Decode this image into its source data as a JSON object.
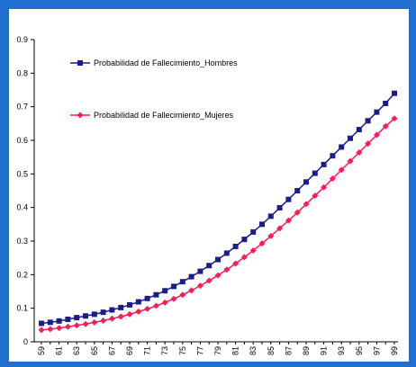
{
  "chart_data": {
    "type": "line",
    "title": "",
    "xlabel": "",
    "ylabel": "",
    "ylim": [
      0,
      0.9
    ],
    "yticks": [
      "0",
      "0.1",
      "0.2",
      "0.3",
      "0.4",
      "0.5",
      "0.6",
      "0.7",
      "0.8",
      "0.9"
    ],
    "x": [
      59,
      60,
      61,
      62,
      63,
      64,
      65,
      66,
      67,
      68,
      69,
      70,
      71,
      72,
      73,
      74,
      75,
      76,
      77,
      78,
      79,
      80,
      81,
      82,
      83,
      84,
      85,
      86,
      87,
      88,
      89,
      90,
      91,
      92,
      93,
      94,
      95,
      96,
      97,
      98,
      99
    ],
    "xtick_labels": [
      "59",
      "61",
      "63",
      "65",
      "67",
      "69",
      "71",
      "73",
      "75",
      "77",
      "79",
      "81",
      "83",
      "85",
      "87",
      "89",
      "91",
      "93",
      "95",
      "97",
      "99"
    ],
    "legend_position": "top-left",
    "series": [
      {
        "name": "Probabilidad de Fallecimiento_Hombres",
        "color": "#1c1c8a",
        "marker": "square",
        "values": [
          0.055,
          0.058,
          0.062,
          0.067,
          0.072,
          0.077,
          0.082,
          0.088,
          0.095,
          0.102,
          0.11,
          0.119,
          0.129,
          0.14,
          0.152,
          0.165,
          0.179,
          0.194,
          0.21,
          0.227,
          0.245,
          0.264,
          0.284,
          0.305,
          0.327,
          0.35,
          0.374,
          0.399,
          0.424,
          0.45,
          0.476,
          0.502,
          0.528,
          0.554,
          0.58,
          0.606,
          0.632,
          0.658,
          0.684,
          0.71,
          0.74
        ]
      },
      {
        "name": "Probabilidad de Fallecimiento_Mujeres",
        "color": "#ff1a5a",
        "marker": "diamond",
        "values": [
          0.035,
          0.038,
          0.041,
          0.045,
          0.049,
          0.053,
          0.058,
          0.063,
          0.069,
          0.075,
          0.082,
          0.09,
          0.098,
          0.107,
          0.117,
          0.128,
          0.14,
          0.153,
          0.167,
          0.182,
          0.198,
          0.215,
          0.233,
          0.252,
          0.272,
          0.293,
          0.315,
          0.338,
          0.361,
          0.385,
          0.41,
          0.435,
          0.46,
          0.486,
          0.512,
          0.538,
          0.564,
          0.59,
          0.616,
          0.642,
          0.665
        ]
      }
    ]
  }
}
